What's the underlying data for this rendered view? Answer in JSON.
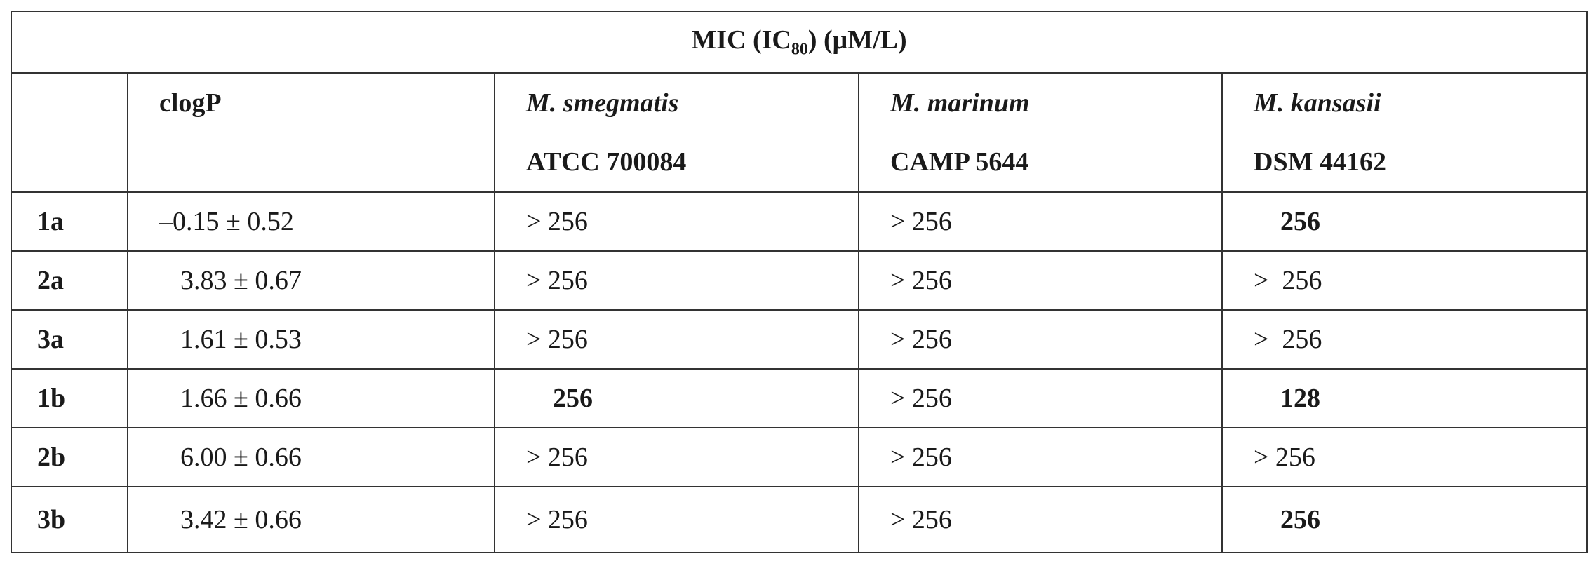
{
  "table": {
    "title": {
      "main": "MIC (IC",
      "sub": "80",
      "unit": ") (μM/L)"
    },
    "header": [
      {
        "line1": "clogP",
        "line2": null
      },
      {
        "line1": "M. smegmatis",
        "line2": "ATCC 700084"
      },
      {
        "line1": "M. marinum",
        "line2": "CAMP 5644"
      },
      {
        "line1": "M. kansasii",
        "line2": "DSM 44162"
      }
    ],
    "rows": [
      [
        "1a",
        "–0.15 ± 0.52",
        "> 256",
        "> 256",
        "256"
      ],
      [
        "2a",
        "3.83 ± 0.67",
        "> 256",
        "> 256",
        ">  256"
      ],
      [
        "3a",
        "1.61 ± 0.53",
        "> 256",
        "> 256",
        ">  256"
      ],
      [
        "1b",
        "1.66 ± 0.66",
        "256",
        "> 256",
        "128"
      ],
      [
        "2b",
        "6.00 ± 0.66",
        "> 256",
        "> 256",
        "> 256"
      ],
      [
        "3b",
        "3.42 ± 0.66",
        "> 256",
        "> 256",
        "256"
      ]
    ]
  }
}
